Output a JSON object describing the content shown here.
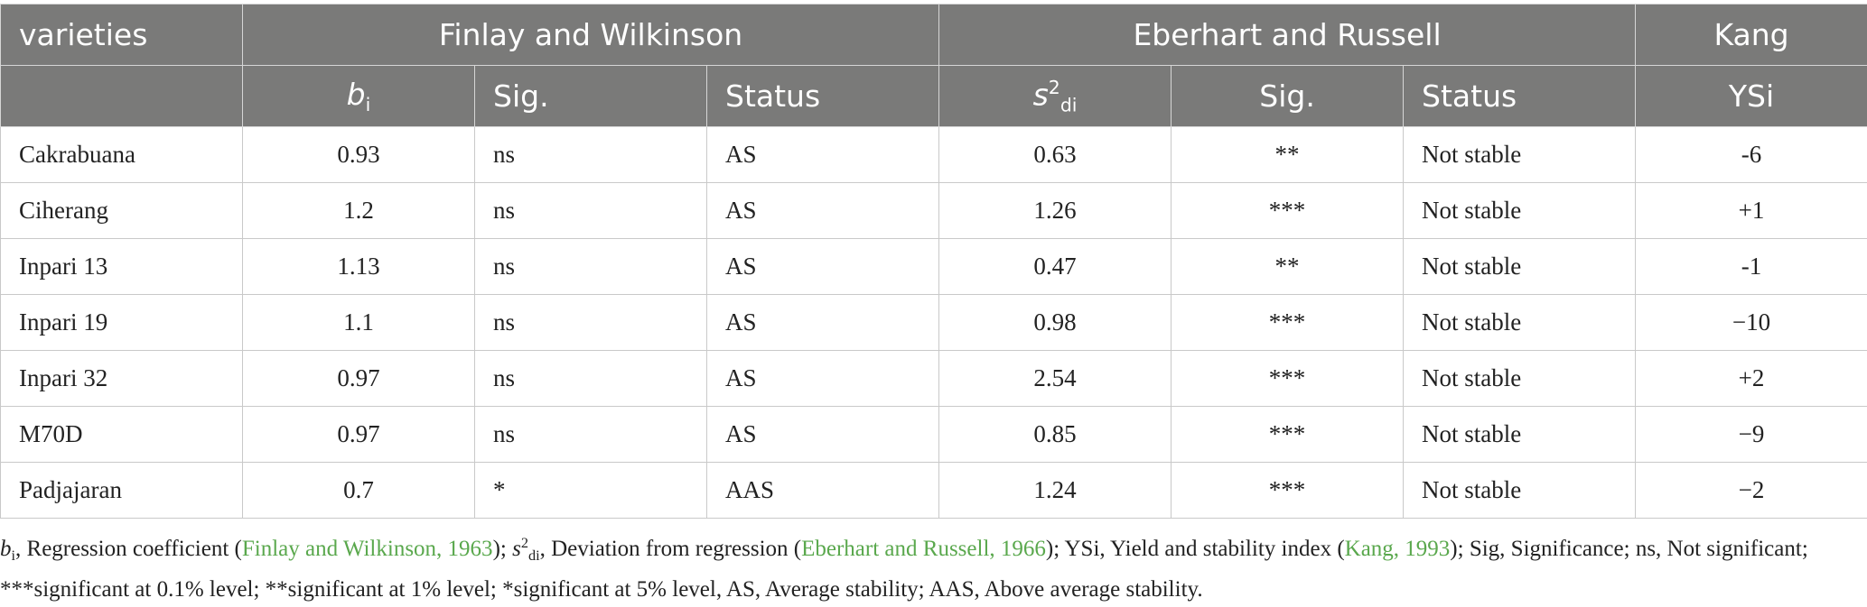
{
  "header": {
    "varieties": "varieties",
    "group_fw": "Finlay and Wilkinson",
    "group_er": "Eberhart and Russell",
    "group_kang": "Kang",
    "bi_symbol": "b",
    "bi_sub": "i",
    "sig1": "Sig.",
    "status1": "Status",
    "s2_symbol": "s",
    "s2_sup": "2",
    "s2_sub": "di",
    "sig2": "Sig.",
    "status2": "Status",
    "ysi": "YSi"
  },
  "rows": [
    {
      "variety": "Cakrabuana",
      "bi": "0.93",
      "sig1": "ns",
      "status1": "AS",
      "s2di": "0.63",
      "sig2": "**",
      "status2": "Not stable",
      "ysi": "-6"
    },
    {
      "variety": "Ciherang",
      "bi": "1.2",
      "sig1": "ns",
      "status1": "AS",
      "s2di": "1.26",
      "sig2": "***",
      "status2": "Not stable",
      "ysi": "+1"
    },
    {
      "variety": "Inpari 13",
      "bi": "1.13",
      "sig1": "ns",
      "status1": "AS",
      "s2di": "0.47",
      "sig2": "**",
      "status2": "Not stable",
      "ysi": "-1"
    },
    {
      "variety": "Inpari 19",
      "bi": "1.1",
      "sig1": "ns",
      "status1": "AS",
      "s2di": "0.98",
      "sig2": "***",
      "status2": "Not stable",
      "ysi": "−10"
    },
    {
      "variety": "Inpari 32",
      "bi": "0.97",
      "sig1": "ns",
      "status1": "AS",
      "s2di": "2.54",
      "sig2": "***",
      "status2": "Not stable",
      "ysi": "+2"
    },
    {
      "variety": "M70D",
      "bi": "0.97",
      "sig1": "ns",
      "status1": "AS",
      "s2di": "0.85",
      "sig2": "***",
      "status2": "Not stable",
      "ysi": "−9"
    },
    {
      "variety": "Padjajaran",
      "bi": "0.7",
      "sig1": "*",
      "status1": "AAS",
      "s2di": "1.24",
      "sig2": "***",
      "status2": "Not stable",
      "ysi": "−2"
    }
  ],
  "footnote": {
    "bi_symbol": "b",
    "bi_sub": "i",
    "t1": ", Regression coefficient (",
    "ref1": "Finlay and Wilkinson, 1963",
    "t2": "); ",
    "s_symbol": "s",
    "s_sup": "2",
    "s_sub": "di",
    "t3": ", Deviation from regression (",
    "ref2": "Eberhart and Russell, 1966",
    "t4": "); YSi, Yield and stability index (",
    "ref3": "Kang, 1993",
    "t5": "); Sig, Significance; ns, Not significant; ***significant at 0.1% level; **significant at 1% level; *significant at 5% level, AS, Average stability; AAS, Above average stability."
  }
}
